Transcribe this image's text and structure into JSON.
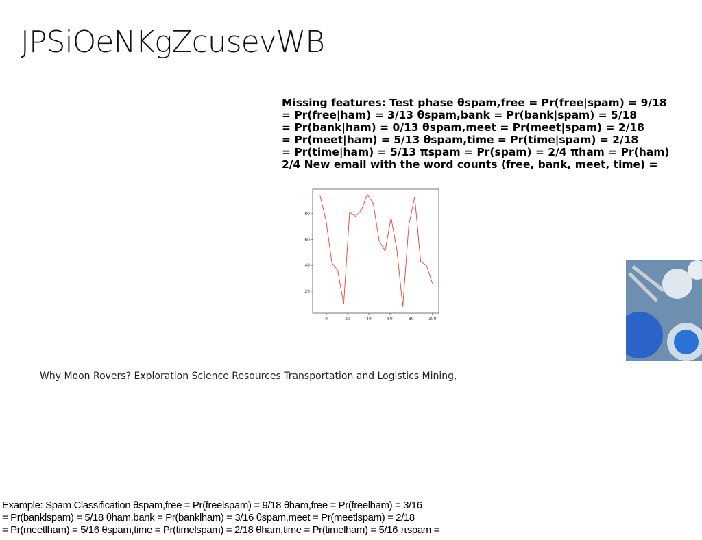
{
  "header": {
    "title": "JPSiOeNKgZcusevWB"
  },
  "missing_features": {
    "lines": [
      "Missing features: Test phase θspam,free = Pr(free|spam) = 9/18",
      "= Pr(free|ham) = 3/13 θspam,bank = Pr(bank|spam) = 5/18",
      "= Pr(bank|ham) = 0/13 θspam,meet = Pr(meet|spam) = 2/18",
      "= Pr(meet|ham) = 5/13 θspam,time = Pr(time|spam) = 2/18",
      "= Pr(time|ham) = 5/13 πspam = Pr(spam) = 2/4 πham = Pr(ham)",
      "2/4 New email with the word counts (free, bank, meet, time) ="
    ]
  },
  "chart_data": {
    "type": "line",
    "color": "#e8403a",
    "x": [
      -6,
      -0.4,
      5.2,
      10.7,
      16.3,
      21.9,
      27.5,
      33.1,
      38.6,
      44.2,
      49.8,
      55.4,
      61,
      66.5,
      72.1,
      77.7,
      83.3,
      88.9,
      94.4,
      100
    ],
    "values": [
      94,
      75,
      42,
      36,
      10,
      81,
      78,
      83,
      95,
      88,
      59,
      51,
      77,
      52,
      8,
      71,
      93,
      43,
      40,
      26
    ],
    "xlim": [
      -13,
      106
    ],
    "ylim": [
      3,
      99
    ],
    "xticks": [
      0,
      20,
      40,
      60,
      80,
      100
    ],
    "yticks": [
      20,
      40,
      60,
      80
    ]
  },
  "caption": {
    "text": "Why Moon Rovers? Exploration Science Resources Transportation and Logistics Mining,"
  },
  "example": {
    "lines": [
      "Example: Spam Classification θspam,free = Pr(freelspam) = 9/18 θham,free = Pr(freelham) = 3/16",
      "= Pr(banklspam) = 5/18 θham,bank = Pr(banklham) = 3/16 θspam,meet = Pr(meetlspam) = 2/18",
      "= Pr(meetlham) = 5/16 θspam,time = Pr(timelspam) = 2/18 θham,time = Pr(timelham) = 5/16 πspam ="
    ]
  }
}
